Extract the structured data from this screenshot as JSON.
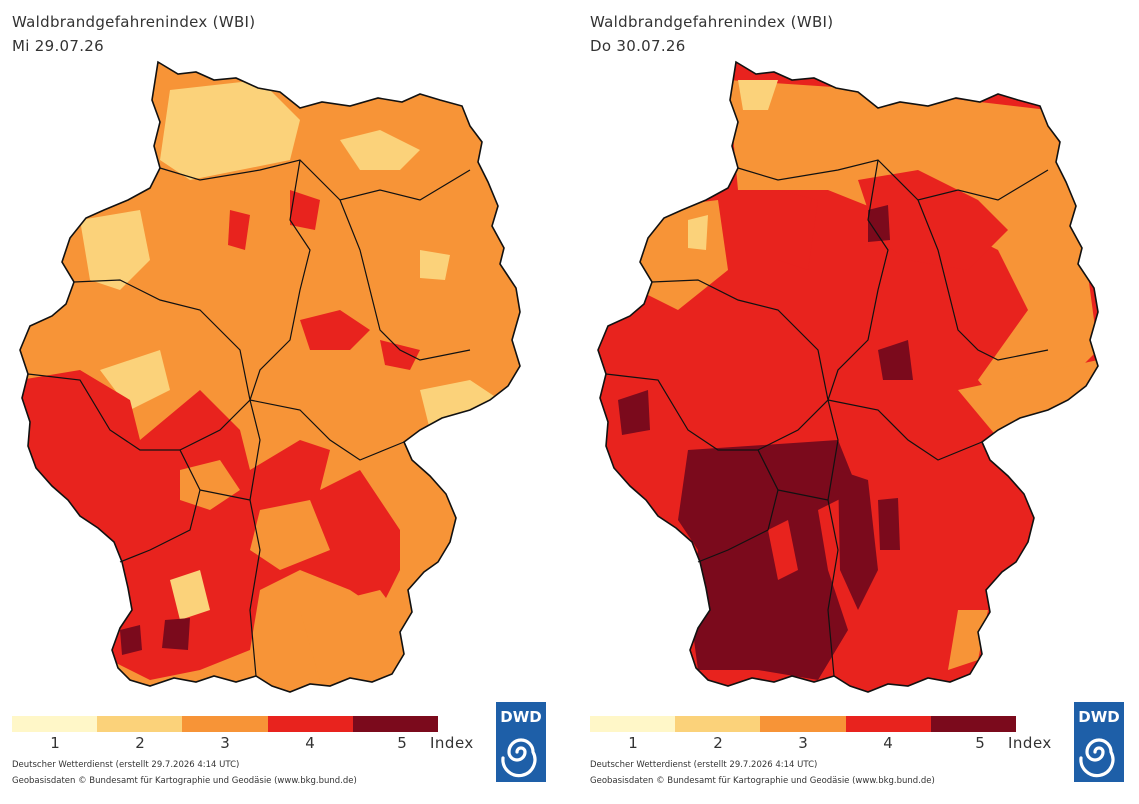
{
  "panels": [
    {
      "title": "Waldbrandgefahrenindex (WBI)",
      "date": "Mi 29.07.26",
      "credit_line1": "Deutscher Wetterdienst (erstellt 29.7.2026 4:14 UTC)",
      "credit_line2": "Geobasisdaten © Bundesamt für Kartographie und Geodäsie (www.bkg.bund.de)"
    },
    {
      "title": "Waldbrandgefahrenindex (WBI)",
      "date": "Do 30.07.26",
      "credit_line1": "Deutscher Wetterdienst (erstellt 29.7.2026 4:14 UTC)",
      "credit_line2": "Geobasisdaten © Bundesamt für Kartographie und Geodäsie (www.bkg.bund.de)"
    }
  ],
  "legend": {
    "levels": [
      "1",
      "2",
      "3",
      "4",
      "5"
    ],
    "unit": "Index",
    "colors": [
      "#fff7c8",
      "#fbd27a",
      "#f79437",
      "#e8231e",
      "#7b0a1c"
    ]
  },
  "logo": {
    "text": "DWD",
    "color": "#1e5fa8",
    "icon": "dwd-spiral-logo"
  },
  "border_color": "#111111"
}
